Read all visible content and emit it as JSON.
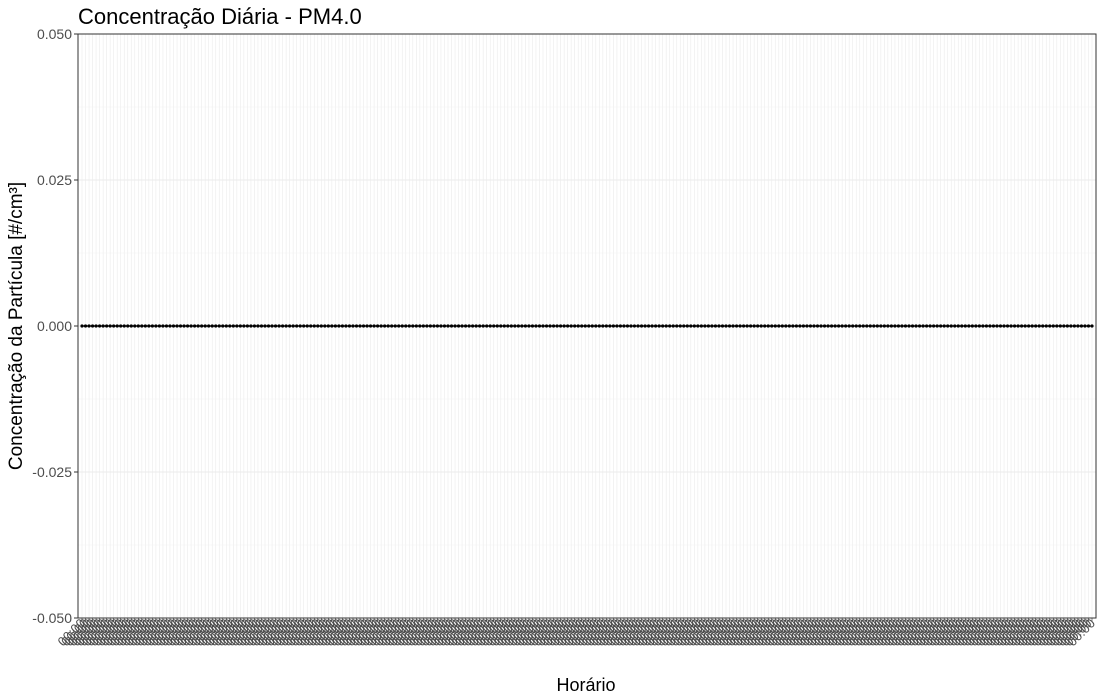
{
  "chart_data": {
    "type": "line",
    "title": "Concentração Diária - PM4.0",
    "xlabel": "Horário",
    "ylabel": "Concentração da Partícula [#/cm³]",
    "ylim": [
      -0.05,
      0.05
    ],
    "y_ticks": [
      "-0.050",
      "-0.025",
      "0.000",
      "0.025",
      "0.050"
    ],
    "y_tick_values": [
      -0.05,
      -0.025,
      0,
      0.025,
      0.05
    ],
    "n_points": 288,
    "x_tick_label": "00:00",
    "values_constant": 0,
    "grid": true,
    "legend": "none",
    "colors": {
      "line": "#000000",
      "grid": "#ebebeb",
      "grid_minor": "#f2f2f2",
      "tick_text": "#4d4d4d",
      "border": "#333333"
    }
  }
}
